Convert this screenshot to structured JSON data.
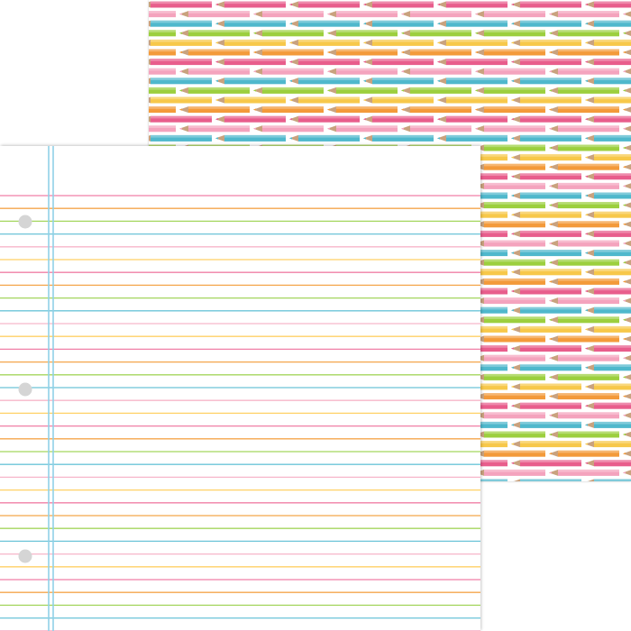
{
  "pencil_paper": {
    "row_colors": [
      "#e85d8c",
      "#f4a3bd",
      "#4fb8cc",
      "#9ccf3e",
      "#f7c84a",
      "#f39a3a"
    ],
    "tip_color": "#c9a27e"
  },
  "notebook_paper": {
    "rule_colors": [
      "#f07fa6",
      "#f4a64b",
      "#a4d65e",
      "#6cc4d8",
      "#f7b6c9",
      "#ffd166"
    ],
    "margin_line_color": "#8fd0e8",
    "hole_color": "#d5d5d5",
    "hole_count": 3
  }
}
